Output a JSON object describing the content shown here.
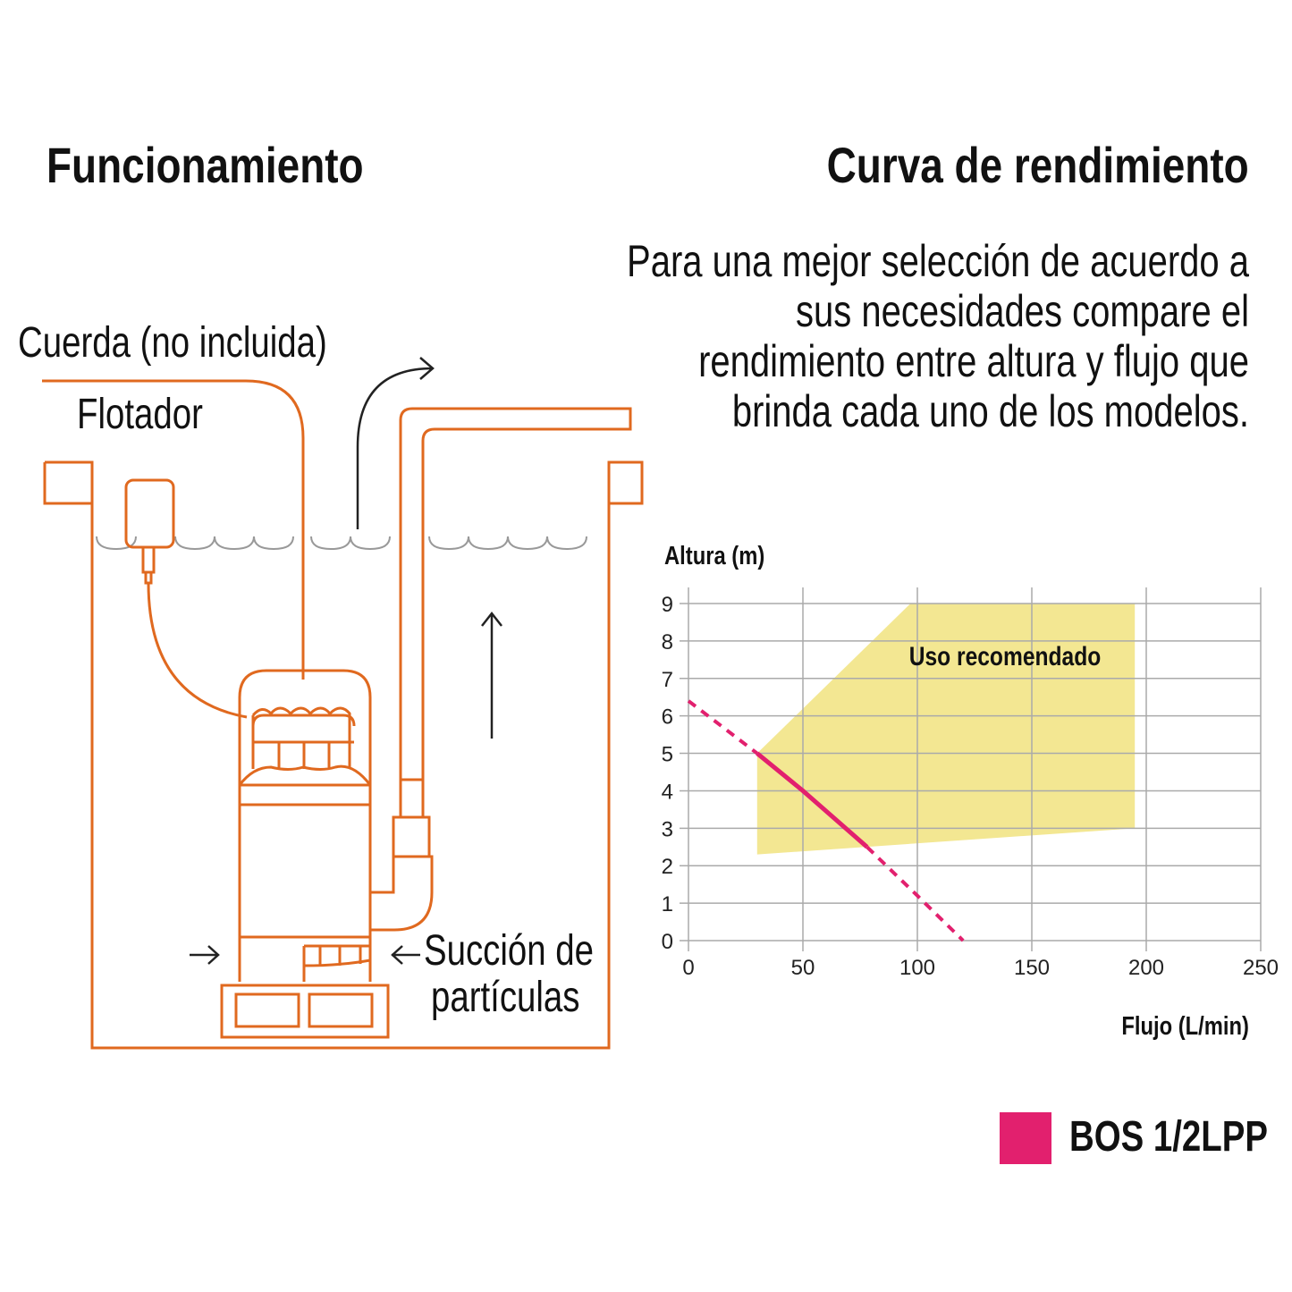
{
  "left": {
    "title": "Funcionamiento",
    "labels": {
      "rope": "Cuerda (no incluida)",
      "float": "Flotador",
      "suction_line1": "Succión de",
      "suction_line2": "partículas"
    },
    "line_color": "#e0691f"
  },
  "right": {
    "title": "Curva de rendimiento",
    "description": "Para una mejor selección de acuerdo a sus necesidades compare el rendimiento entre altura y flujo que brinda cada uno de los modelos."
  },
  "chart_data": {
    "type": "line",
    "xlabel": "Flujo (L/min)",
    "ylabel": "Altura (m)",
    "xlim": [
      0,
      250
    ],
    "ylim": [
      0,
      9
    ],
    "xticks": [
      0,
      50,
      100,
      150,
      200,
      250
    ],
    "yticks": [
      0,
      1,
      2,
      3,
      4,
      5,
      6,
      7,
      8,
      9
    ],
    "grid": true,
    "legend_position": "bottom-right",
    "recommended_zone": {
      "label": "Uso recomendado",
      "color": "#f3e792",
      "polygon": [
        [
          30,
          2.3
        ],
        [
          30,
          5
        ],
        [
          97,
          9
        ],
        [
          195,
          9
        ],
        [
          195,
          3
        ]
      ]
    },
    "series": [
      {
        "name": "BOS 1/2LPP",
        "color": "#e2206e",
        "x": [
          0,
          30,
          50,
          78,
          100,
          120
        ],
        "y": [
          6.4,
          5,
          4,
          2.5,
          1.2,
          0
        ],
        "solid_range": [
          30,
          78
        ]
      }
    ]
  }
}
